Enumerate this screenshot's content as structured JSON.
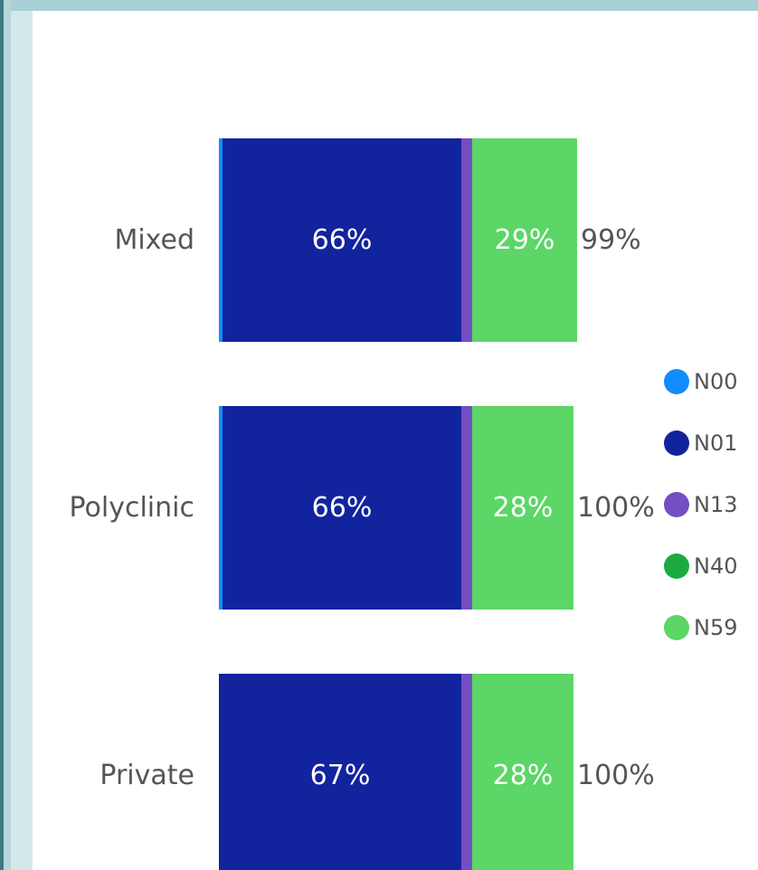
{
  "chart_data": {
    "type": "bar",
    "orientation": "horizontal",
    "stacked": true,
    "categories": [
      "Mixed",
      "Polyclinic",
      "Private"
    ],
    "series": [
      {
        "name": "N00",
        "color": "#118dff",
        "values": [
          1,
          1,
          0
        ]
      },
      {
        "name": "N01",
        "color": "#12239e",
        "values": [
          66,
          66,
          67
        ]
      },
      {
        "name": "N13",
        "color": "#744ec2",
        "values": [
          3,
          3,
          3
        ]
      },
      {
        "name": "N40",
        "color": "#1aab40",
        "values": [
          0,
          0,
          0
        ]
      },
      {
        "name": "N59",
        "color": "#5bd667",
        "values": [
          29,
          28,
          28
        ]
      }
    ],
    "segment_labels": [
      {
        "category": "Mixed",
        "series": "N01",
        "text": "66%"
      },
      {
        "category": "Mixed",
        "series": "N59",
        "text": "29%"
      },
      {
        "category": "Polyclinic",
        "series": "N01",
        "text": "66%"
      },
      {
        "category": "Polyclinic",
        "series": "N59",
        "text": "28%"
      },
      {
        "category": "Private",
        "series": "N01",
        "text": "67%"
      },
      {
        "category": "Private",
        "series": "N59",
        "text": "28%"
      }
    ],
    "totals": [
      "99%",
      "100%",
      "100%"
    ],
    "legend": {
      "placement": "right",
      "entries": [
        "N00",
        "N01",
        "N13",
        "N40",
        "N59"
      ]
    },
    "title": "",
    "xlabel": "",
    "ylabel": "",
    "grid": false
  }
}
